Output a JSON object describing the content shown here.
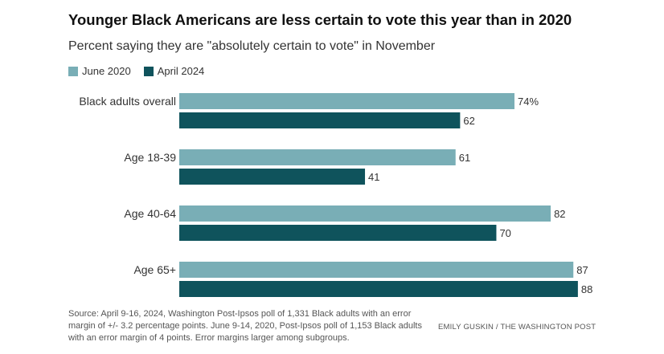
{
  "header": {
    "title": "Younger Black Americans are less certain to vote this year than in 2020",
    "subtitle": "Percent saying they are \"absolutely certain to vote\" in November"
  },
  "legend": {
    "items": [
      {
        "label": "June 2020",
        "color": "#79aeb6"
      },
      {
        "label": "April 2024",
        "color": "#0f535c"
      }
    ]
  },
  "chart_data": {
    "type": "bar",
    "orientation": "horizontal",
    "categories": [
      "Black adults overall",
      "Age 18-39",
      "Age 40-64",
      "Age 65+"
    ],
    "series": [
      {
        "name": "June 2020",
        "color": "#79aeb6",
        "values": [
          74,
          61,
          82,
          87
        ],
        "labels": [
          "74%",
          "61",
          "82",
          "87"
        ]
      },
      {
        "name": "April 2024",
        "color": "#0f535c",
        "values": [
          62,
          41,
          70,
          88
        ],
        "labels": [
          "62",
          "41",
          "70",
          "88"
        ]
      }
    ],
    "xlim": [
      0,
      100
    ],
    "grid": false,
    "legend_position": "top-left"
  },
  "footer": {
    "source": "Source: April 9-16, 2024, Washington Post-Ipsos poll of 1,331 Black adults with an error margin of +/- 3.2 percentage points. June 9-14, 2020, Post-Ipsos poll of 1,153 Black adults with an error margin of 4 points. Error margins larger among subgroups.",
    "credit": "EMILY GUSKIN / THE WASHINGTON POST"
  }
}
